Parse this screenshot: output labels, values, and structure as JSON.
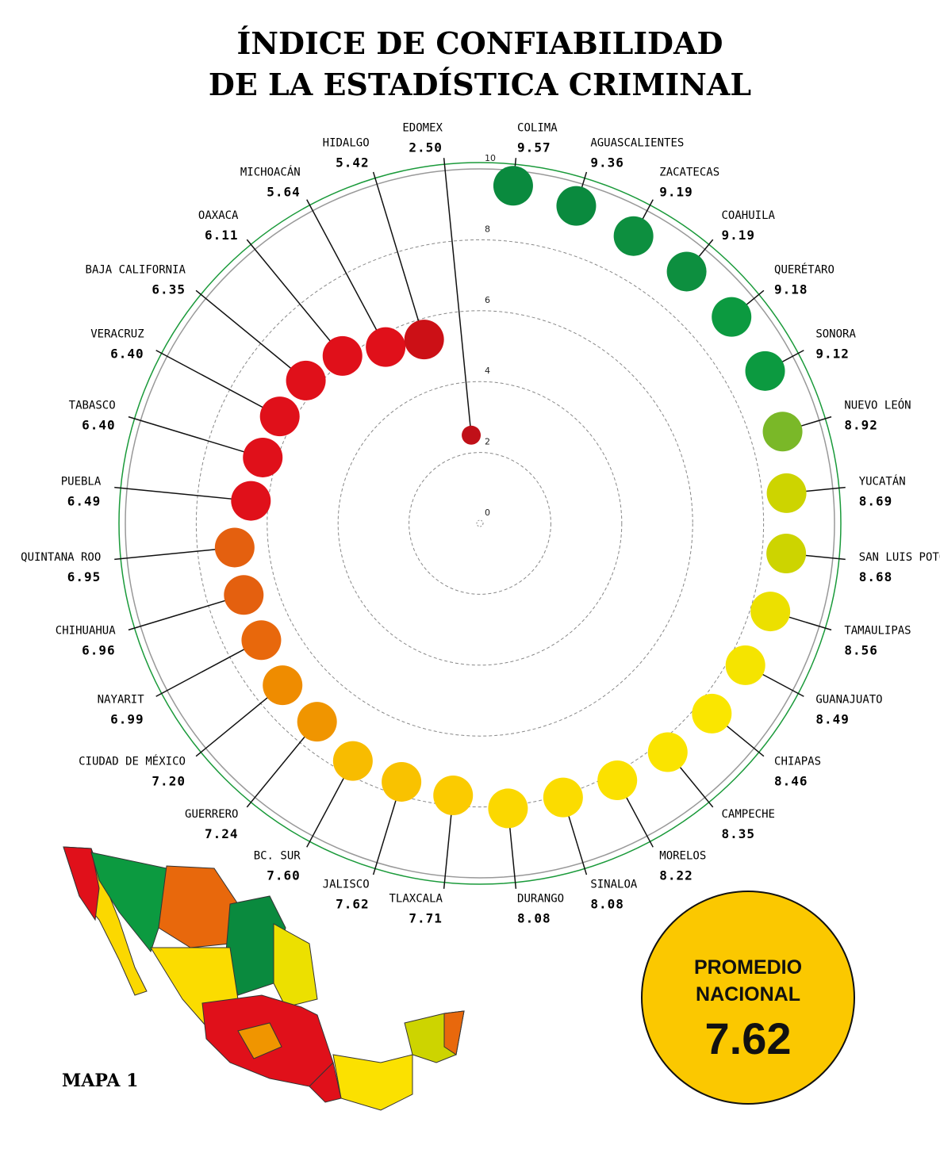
{
  "chart_data": {
    "type": "polar-dot",
    "title": [
      "ÍNDICE DE CONFIABILIDAD",
      "DE LA ESTADÍSTICA CRIMINAL"
    ],
    "categories": [
      "COLIMA",
      "AGUASCALIENTES",
      "ZACATECAS",
      "COAHUILA",
      "QUERÉTARO",
      "SONORA",
      "NUEVO LEÓN",
      "YUCATÁN",
      "SAN LUIS POTOSÍ",
      "TAMAULIPAS",
      "GUANAJUATO",
      "CHIAPAS",
      "CAMPECHE",
      "MORELOS",
      "SINALOA",
      "DURANGO",
      "TLAXCALA",
      "JALISCO",
      "BC. SUR",
      "GUERRERO",
      "CIUDAD DE MÉXICO",
      "NAYARIT",
      "CHIHUAHUA",
      "QUINTANA ROO",
      "PUEBLA",
      "TABASCO",
      "VERACRUZ",
      "BAJA CALIFORNIA",
      "OAXACA",
      "MICHOACÁN",
      "HIDALGO",
      "EDOMEX"
    ],
    "values": [
      9.57,
      9.36,
      9.19,
      9.19,
      9.18,
      9.12,
      8.92,
      8.69,
      8.68,
      8.56,
      8.49,
      8.46,
      8.35,
      8.22,
      8.08,
      8.08,
      7.71,
      7.62,
      7.6,
      7.24,
      7.2,
      6.99,
      6.96,
      6.95,
      6.49,
      6.4,
      6.4,
      6.35,
      6.11,
      5.64,
      5.42,
      2.5
    ],
    "value_labels": [
      "9.57",
      "9.36",
      "9.19",
      "9.19",
      "9.18",
      "9.12",
      "8.92",
      "8.69",
      "8.68",
      "8.56",
      "8.49",
      "8.46",
      "8.35",
      "8.22",
      "8.08",
      "8.08",
      "7.71",
      "7.62",
      "7.60",
      "7.24",
      "7.20",
      "6.99",
      "6.96",
      "6.95",
      "6.49",
      "6.40",
      "6.40",
      "6.35",
      "6.11",
      "5.64",
      "5.42",
      "2.50"
    ],
    "colors": [
      "#0a8a3e",
      "#0a8a3e",
      "#0d8f3f",
      "#0d8f3f",
      "#0c9a40",
      "#0c9a40",
      "#7ab828",
      "#cdd400",
      "#cdd400",
      "#ece000",
      "#f5e400",
      "#fae600",
      "#fae400",
      "#fbe100",
      "#fbdc00",
      "#fbd800",
      "#fbcb00",
      "#f9c200",
      "#f8bc00",
      "#f09500",
      "#ef8c00",
      "#e8680c",
      "#e4600f",
      "#e4600f",
      "#e0101a",
      "#e0101a",
      "#e0101a",
      "#e0101a",
      "#e0101a",
      "#e0101a",
      "#cc1016",
      "#c01018"
    ],
    "rlim": [
      0,
      10
    ],
    "rticks": [
      0,
      2,
      4,
      6,
      8,
      10
    ]
  },
  "average": {
    "label": "PROMEDIO NACIONAL",
    "value": 7.62
  },
  "map_label": "MAPA 1"
}
